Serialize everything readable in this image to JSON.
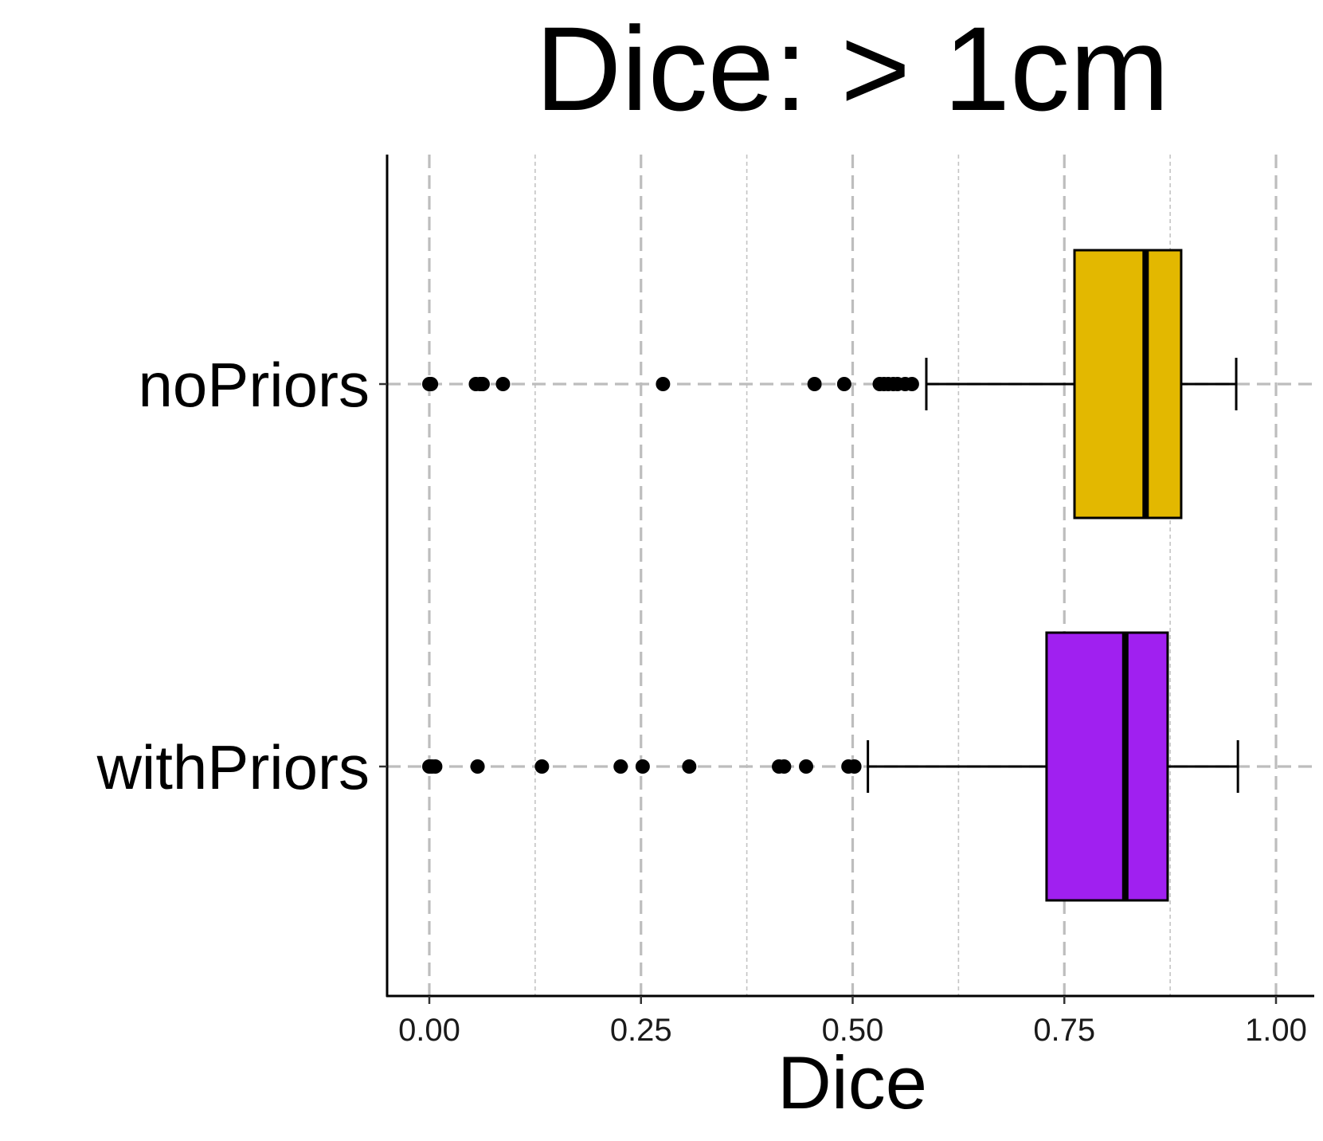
{
  "chart_data": {
    "type": "boxplot",
    "orientation": "horizontal",
    "title": "Dice: > 1cm",
    "xlabel": "Dice",
    "ylabel": "",
    "xlim": [
      -0.025,
      1.025
    ],
    "x_ticks": [
      0.0,
      0.25,
      0.5,
      0.75,
      1.0
    ],
    "x_tick_labels": [
      "0.00",
      "0.25",
      "0.50",
      "0.75",
      "1.00"
    ],
    "x_minor_gridlines": [
      0.125,
      0.375,
      0.625,
      0.875
    ],
    "grid": "dashed",
    "legend": "none",
    "categories": [
      "noPriors",
      "withPriors"
    ],
    "series": [
      {
        "category": "noPriors",
        "color": "#E3B800",
        "whisker_low": 0.587,
        "q1": 0.762,
        "median": 0.846,
        "q3": 0.888,
        "whisker_high": 0.953,
        "outliers": [
          0.0,
          0.002,
          0.055,
          0.06,
          0.063,
          0.087,
          0.276,
          0.455,
          0.49,
          0.532,
          0.537,
          0.542,
          0.548,
          0.553,
          0.562,
          0.57
        ]
      },
      {
        "category": "withPriors",
        "color": "#A020F0",
        "whisker_low": 0.518,
        "q1": 0.729,
        "median": 0.822,
        "q3": 0.872,
        "whisker_high": 0.955,
        "outliers": [
          0.0,
          0.003,
          0.007,
          0.057,
          0.133,
          0.226,
          0.252,
          0.307,
          0.413,
          0.419,
          0.445,
          0.495,
          0.502
        ]
      }
    ]
  }
}
